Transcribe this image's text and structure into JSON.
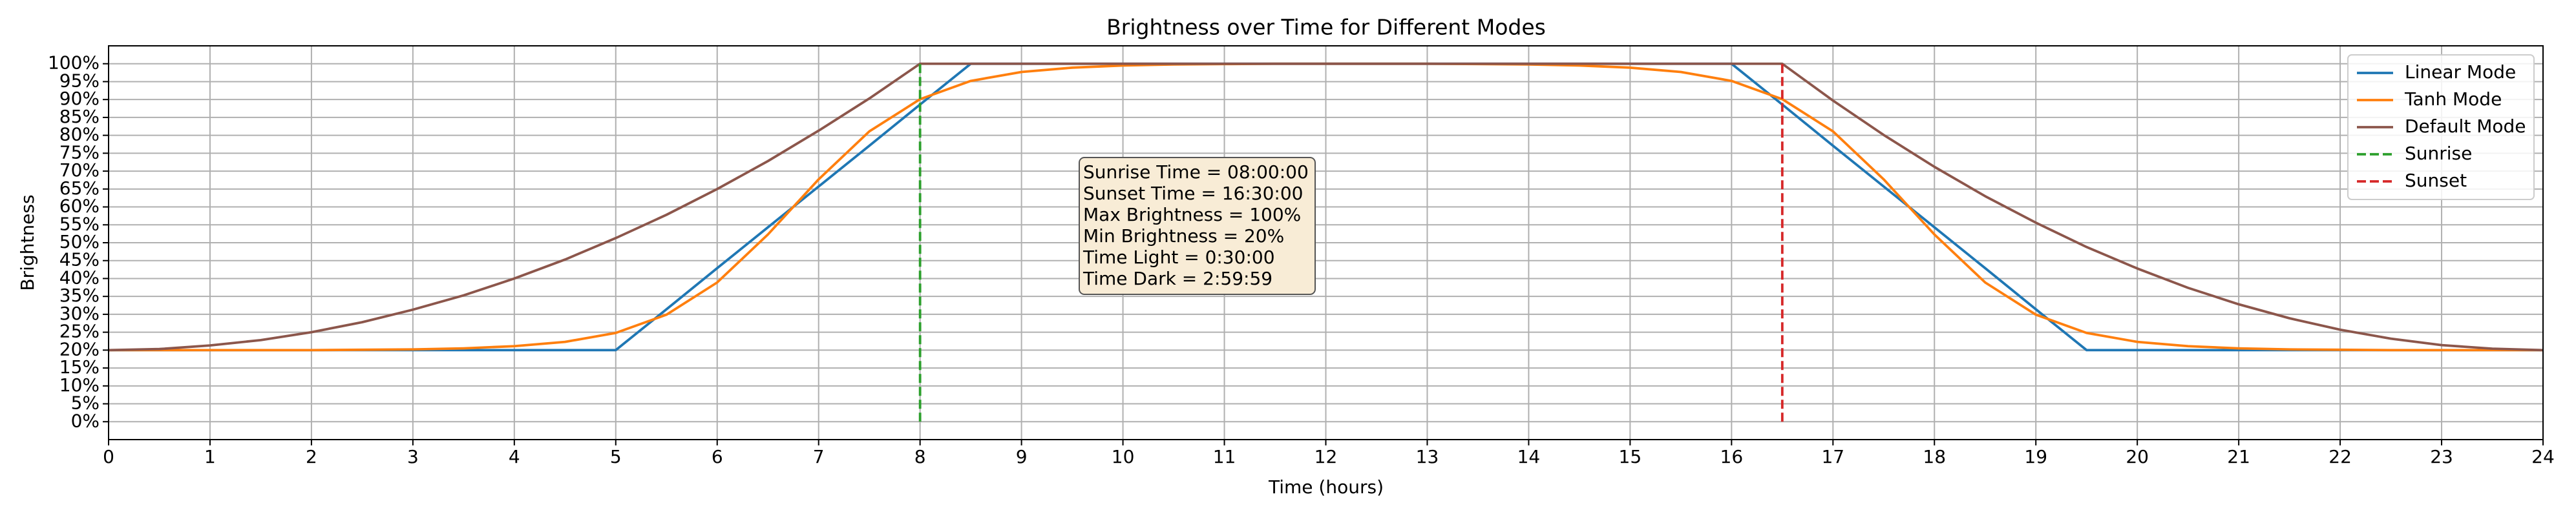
{
  "chart_data": {
    "type": "line",
    "title": "Brightness over Time for Different Modes",
    "x_label": "Time (hours)",
    "y_label": "Brightness",
    "x": [
      0,
      0.5,
      1,
      1.5,
      2,
      2.5,
      3,
      3.5,
      4,
      4.5,
      5,
      5.5,
      6,
      6.5,
      7,
      7.5,
      8,
      8.5,
      9,
      9.5,
      10,
      10.5,
      11,
      11.5,
      12,
      12.5,
      13,
      13.5,
      14,
      14.5,
      15,
      15.5,
      16,
      16.5,
      17,
      17.5,
      18,
      18.5,
      19,
      19.5,
      20,
      20.5,
      21,
      21.5,
      22,
      22.5,
      23,
      23.5,
      24
    ],
    "series": [
      {
        "name": "Linear Mode",
        "color": "#1f77b4",
        "values": [
          20,
          20,
          20,
          20,
          20,
          20,
          20,
          20,
          20,
          20,
          20,
          31.4,
          42.9,
          54.3,
          65.7,
          77.1,
          88.6,
          100,
          100,
          100,
          100,
          100,
          100,
          100,
          100,
          100,
          100,
          100,
          100,
          100,
          100,
          100,
          100,
          88.6,
          77.1,
          65.7,
          54.3,
          42.9,
          31.4,
          20,
          20,
          20,
          20,
          20,
          20,
          20,
          20,
          20,
          20
        ]
      },
      {
        "name": "Tanh Mode",
        "color": "#ff7f0e",
        "values": [
          20,
          20,
          20,
          20,
          20,
          20.1,
          20.2,
          20.5,
          21.1,
          22.3,
          24.8,
          29.9,
          38.9,
          52.3,
          67.7,
          81.1,
          90.1,
          95.2,
          97.7,
          98.9,
          99.5,
          99.8,
          99.9,
          100,
          100,
          100,
          100,
          99.9,
          99.8,
          99.5,
          98.9,
          97.7,
          95.2,
          90.1,
          81.1,
          67.7,
          52.3,
          38.9,
          29.9,
          24.8,
          22.3,
          21.1,
          20.5,
          20.2,
          20.1,
          20,
          20,
          20,
          20
        ]
      },
      {
        "name": "Default Mode",
        "color": "#8c564b",
        "values": [
          20,
          20.3,
          21.3,
          22.8,
          25,
          27.8,
          31.3,
          35.3,
          40,
          45.3,
          51.3,
          57.8,
          65,
          72.8,
          81.3,
          90.3,
          100,
          100,
          100,
          100,
          100,
          100,
          100,
          100,
          100,
          100,
          100,
          100,
          100,
          100,
          100,
          100,
          100,
          100,
          89.7,
          80.1,
          71.2,
          63,
          55.6,
          48.8,
          42.8,
          37.4,
          32.8,
          28.9,
          25.7,
          23.2,
          21.4,
          20.4,
          20
        ]
      }
    ],
    "vlines": [
      {
        "name": "Sunrise",
        "color": "#2ca02c",
        "x": [
          8,
          8
        ],
        "values": [
          0,
          100
        ]
      },
      {
        "name": "Sunset",
        "color": "#d62728",
        "x": [
          16.5,
          16.5
        ],
        "values": [
          0,
          100
        ]
      }
    ],
    "annotation": [
      "Sunrise Time = 08:00:00",
      "Sunset Time = 16:30:00",
      "Max Brightness = 100%",
      "Min Brightness = 20%",
      "Time Light = 0:30:00",
      "Time Dark = 2:59:59"
    ],
    "xlim": [
      0,
      24
    ],
    "ylim": [
      -5,
      105
    ],
    "xticks": [
      0,
      1,
      2,
      3,
      4,
      5,
      6,
      7,
      8,
      9,
      10,
      11,
      12,
      13,
      14,
      15,
      16,
      17,
      18,
      19,
      20,
      21,
      22,
      23,
      24
    ],
    "yticks": [
      {
        "value": 0,
        "label": "0%"
      },
      {
        "value": 5,
        "label": "5%"
      },
      {
        "value": 10,
        "label": "10%"
      },
      {
        "value": 15,
        "label": "15%"
      },
      {
        "value": 20,
        "label": "20%"
      },
      {
        "value": 25,
        "label": "25%"
      },
      {
        "value": 30,
        "label": "30%"
      },
      {
        "value": 35,
        "label": "35%"
      },
      {
        "value": 40,
        "label": "40%"
      },
      {
        "value": 45,
        "label": "45%"
      },
      {
        "value": 50,
        "label": "50%"
      },
      {
        "value": 55,
        "label": "55%"
      },
      {
        "value": 60,
        "label": "60%"
      },
      {
        "value": 65,
        "label": "65%"
      },
      {
        "value": 70,
        "label": "70%"
      },
      {
        "value": 75,
        "label": "75%"
      },
      {
        "value": 80,
        "label": "80%"
      },
      {
        "value": 85,
        "label": "85%"
      },
      {
        "value": 90,
        "label": "90%"
      },
      {
        "value": 95,
        "label": "95%"
      },
      {
        "value": 100,
        "label": "100%"
      }
    ],
    "grid": true,
    "legend": "upper right"
  }
}
